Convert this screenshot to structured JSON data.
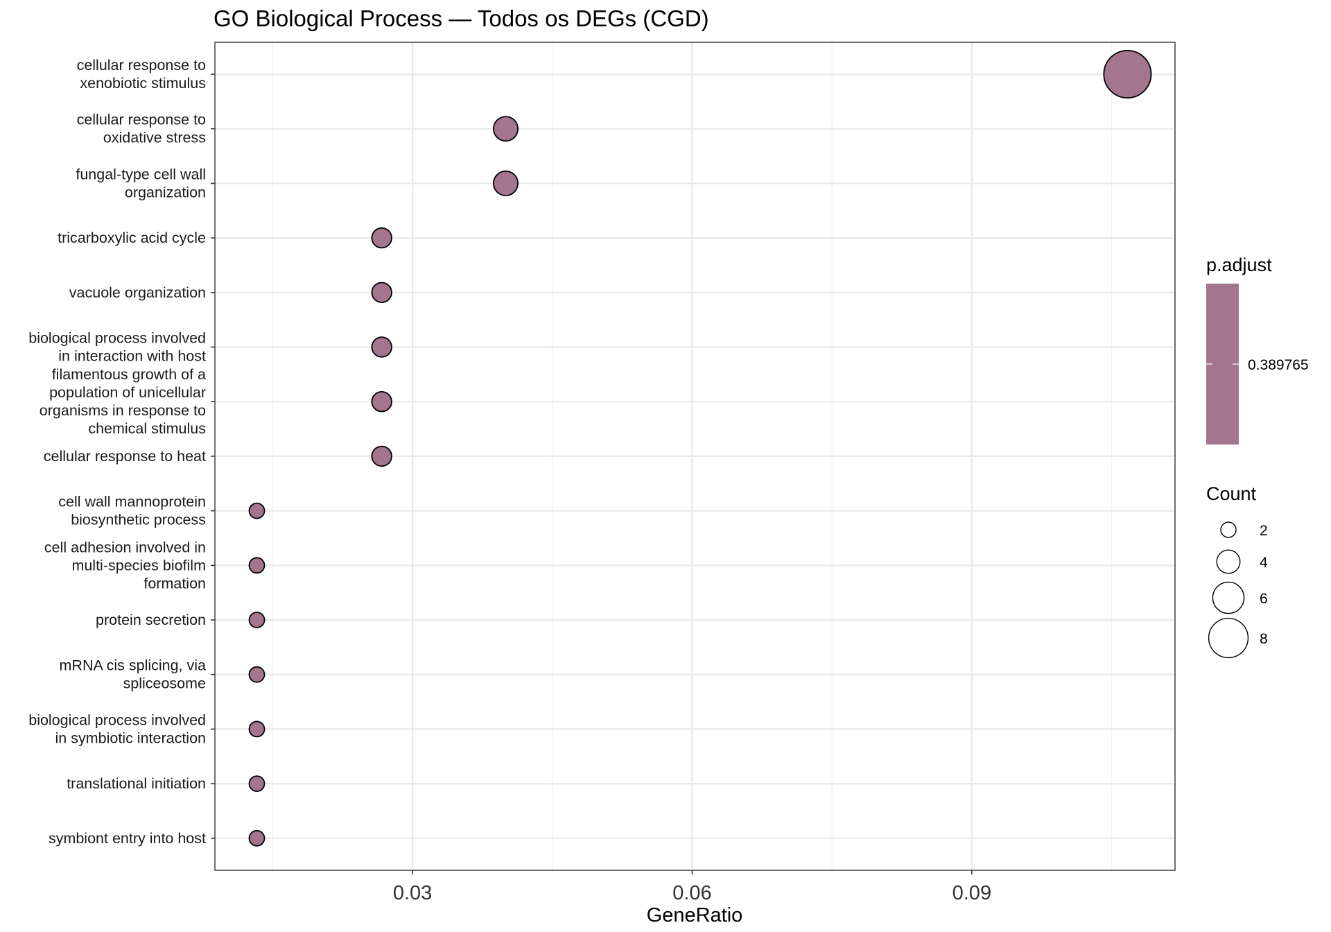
{
  "chart_data": {
    "type": "scatter",
    "title": "GO Biological Process — Todos os DEGs (CGD)",
    "xlabel": "GeneRatio",
    "ylabel": "",
    "xlim": [
      0.0088,
      0.1118
    ],
    "xticks": [
      0.03,
      0.06,
      0.09
    ],
    "xtick_labels": [
      "0.03",
      "0.06",
      "0.09"
    ],
    "grid": true,
    "point_color": "#a3768e",
    "categories": [
      "cellular response to\nxenobiotic stimulus",
      "cellular response to\noxidative stress",
      "fungal-type cell wall\norganization",
      "tricarboxylic acid cycle",
      "vacuole organization",
      "biological process involved\nin interaction with host",
      "filamentous growth of a\npopulation of unicellular\norganisms in response to\nchemical stimulus",
      "cellular response to heat",
      "cell wall mannoprotein\nbiosynthetic process",
      "cell adhesion involved in\nmulti-species biofilm\nformation",
      "protein secretion",
      "mRNA cis splicing, via\nspliceosome",
      "biological process involved\nin symbiotic interaction",
      "translational initiation",
      "symbiont entry into host"
    ],
    "x": [
      0.1067,
      0.04,
      0.04,
      0.0267,
      0.0267,
      0.0267,
      0.0267,
      0.0267,
      0.0133,
      0.0133,
      0.0133,
      0.0133,
      0.0133,
      0.0133,
      0.0133
    ],
    "count": [
      8,
      3,
      3,
      2,
      2,
      2,
      2,
      2,
      1,
      1,
      1,
      1,
      1,
      1,
      1
    ],
    "p_adjust": [
      0.389765,
      0.389765,
      0.389765,
      0.389765,
      0.389765,
      0.389765,
      0.389765,
      0.389765,
      0.389765,
      0.389765,
      0.389765,
      0.389765,
      0.389765,
      0.389765,
      0.389765
    ],
    "legend": {
      "placement": "right",
      "color_title": "p.adjust",
      "color_value_label": "0.389765",
      "size_title": "Count",
      "size_values": [
        2,
        4,
        6,
        8
      ],
      "size_labels": [
        "2",
        "4",
        "6",
        "8"
      ]
    }
  }
}
